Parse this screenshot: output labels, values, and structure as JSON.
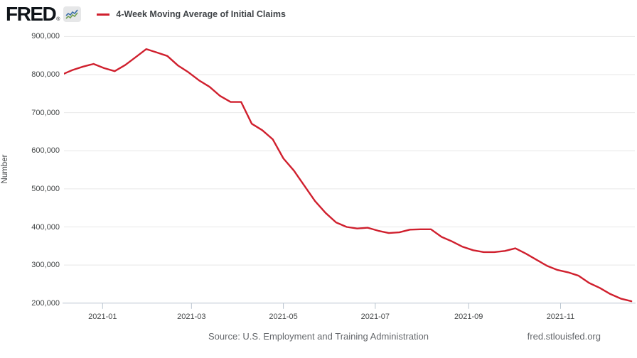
{
  "header": {
    "logo_text": "FRED",
    "registered_mark": "®",
    "legend": {
      "series_label": "4-Week Moving Average of Initial Claims",
      "marker_color": "#d0202e"
    }
  },
  "chart_data": {
    "type": "line",
    "title": "4-Week Moving Average of Initial Claims",
    "ylabel": "Number",
    "xlabel": "",
    "grid": true,
    "legend_position": "top-left",
    "ylim": [
      200000,
      900000
    ],
    "xlim": [
      "2020-12-08",
      "2021-12-20"
    ],
    "line_color": "#d0202e",
    "y_ticks": [
      {
        "value": 900000,
        "label": "900,000"
      },
      {
        "value": 800000,
        "label": "800,000"
      },
      {
        "value": 700000,
        "label": "700,000"
      },
      {
        "value": 600000,
        "label": "600,000"
      },
      {
        "value": 500000,
        "label": "500,000"
      },
      {
        "value": 400000,
        "label": "400,000"
      },
      {
        "value": 300000,
        "label": "300,000"
      },
      {
        "value": 200000,
        "label": "200,000"
      }
    ],
    "x_ticks": [
      {
        "date": "2021-01-01",
        "label": "2021-01"
      },
      {
        "date": "2021-03-01",
        "label": "2021-03"
      },
      {
        "date": "2021-05-01",
        "label": "2021-05"
      },
      {
        "date": "2021-07-01",
        "label": "2021-07"
      },
      {
        "date": "2021-09-01",
        "label": "2021-09"
      },
      {
        "date": "2021-11-01",
        "label": "2021-11"
      }
    ],
    "series": [
      {
        "name": "4-Week Moving Average of Initial Claims",
        "units": "Number",
        "dates": [
          "2020-12-05",
          "2020-12-12",
          "2020-12-19",
          "2020-12-26",
          "2021-01-02",
          "2021-01-09",
          "2021-01-16",
          "2021-01-23",
          "2021-01-30",
          "2021-02-06",
          "2021-02-13",
          "2021-02-20",
          "2021-02-27",
          "2021-03-06",
          "2021-03-13",
          "2021-03-20",
          "2021-03-27",
          "2021-04-03",
          "2021-04-10",
          "2021-04-17",
          "2021-04-24",
          "2021-05-01",
          "2021-05-08",
          "2021-05-15",
          "2021-05-22",
          "2021-05-29",
          "2021-06-05",
          "2021-06-12",
          "2021-06-19",
          "2021-06-26",
          "2021-07-03",
          "2021-07-10",
          "2021-07-17",
          "2021-07-24",
          "2021-07-31",
          "2021-08-07",
          "2021-08-14",
          "2021-08-21",
          "2021-08-28",
          "2021-09-04",
          "2021-09-11",
          "2021-09-18",
          "2021-09-25",
          "2021-10-02",
          "2021-10-09",
          "2021-10-16",
          "2021-10-23",
          "2021-10-30",
          "2021-11-06",
          "2021-11-13",
          "2021-11-20",
          "2021-11-27",
          "2021-12-04",
          "2021-12-11",
          "2021-12-18"
        ],
        "values": [
          800000,
          812000,
          821000,
          828000,
          817000,
          809000,
          825000,
          846000,
          867000,
          858000,
          849000,
          824000,
          806000,
          785000,
          768000,
          744000,
          728000,
          728000,
          671000,
          654000,
          630000,
          580000,
          548000,
          508000,
          468000,
          437000,
          412000,
          400000,
          396000,
          398000,
          390000,
          384000,
          386000,
          393000,
          394000,
          394000,
          374000,
          362000,
          348000,
          339000,
          334000,
          334000,
          337000,
          344000,
          330000,
          314000,
          298000,
          287000,
          281000,
          272000,
          253000,
          240000,
          224000,
          212000,
          205000
        ]
      }
    ]
  },
  "footer": {
    "source": "Source: U.S. Employment and Training Administration",
    "link": "fred.stlouisfed.org"
  },
  "colors": {
    "line": "#d0202e",
    "grid": "#e7e7e7",
    "axis": "#b9c4cf",
    "tick_text": "#444748",
    "footer_text": "#65686c"
  }
}
